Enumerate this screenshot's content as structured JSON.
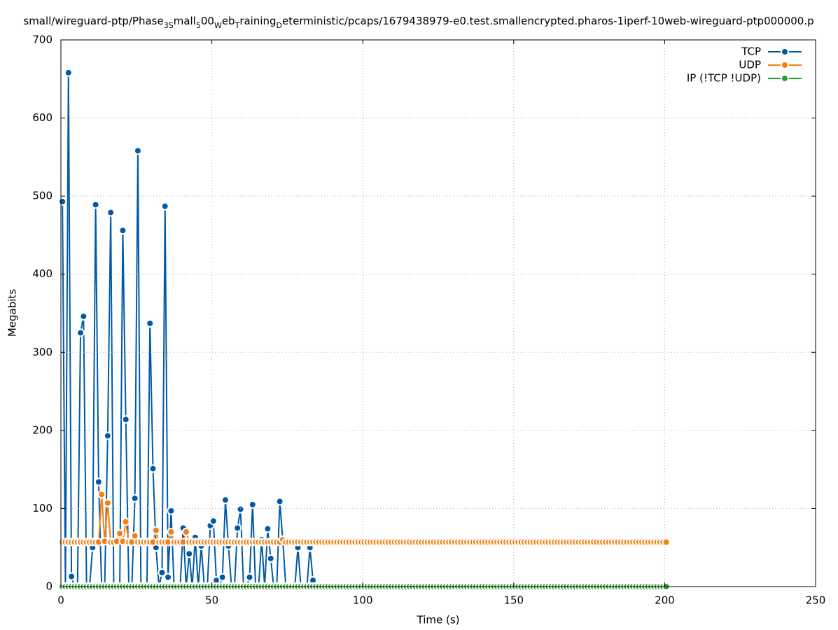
{
  "chart_data": {
    "type": "line",
    "title": [
      {
        "text": "small/wireguard-ptp/Phase",
        "sub": false
      },
      {
        "text": "3S",
        "sub": true
      },
      {
        "text": "mall",
        "sub": false
      },
      {
        "text": "5",
        "sub": true
      },
      {
        "text": "00",
        "sub": false
      },
      {
        "text": "W",
        "sub": true
      },
      {
        "text": "eb",
        "sub": false
      },
      {
        "text": "T",
        "sub": true
      },
      {
        "text": "raining",
        "sub": false
      },
      {
        "text": "D",
        "sub": true
      },
      {
        "text": "eterministic/pcaps/1679438979-e0.test.smallencrypted.pharos-1iperf-10web-wireguard-ptp000000.p",
        "sub": false
      }
    ],
    "xlabel": "Time (s)",
    "ylabel": "Megabits",
    "xlim": [
      0,
      250
    ],
    "xticks": [
      0,
      50,
      100,
      150,
      200,
      250
    ],
    "ylim": [
      0,
      700
    ],
    "yticks": [
      0,
      100,
      200,
      300,
      400,
      500,
      600,
      700
    ],
    "grid": true,
    "legend": "top-right",
    "series": [
      {
        "name": "TCP",
        "color": "#005aa8",
        "x": [
          0.5,
          1.5,
          2.5,
          3.5,
          4.5,
          5.5,
          6.5,
          7.5,
          8.5,
          9.5,
          10.5,
          11.5,
          12.5,
          13.5,
          14.5,
          15.5,
          16.5,
          17.5,
          18.5,
          19.5,
          20.5,
          21.5,
          22.5,
          23.5,
          24.5,
          25.5,
          26.5,
          27.5,
          28.5,
          29.5,
          30.5,
          31.5,
          32.5,
          33.5,
          34.5,
          35.5,
          36.5,
          37.5,
          38.5,
          39.5,
          40.5,
          41.5,
          42.5,
          43.5,
          44.5,
          45.5,
          46.5,
          47.5,
          48.5,
          49.5,
          50.5,
          51.5,
          52.5,
          53.5,
          54.5,
          55.5,
          56.5,
          57.5,
          58.5,
          59.5,
          60.5,
          61.5,
          62.5,
          63.5,
          64.5,
          65.5,
          66.5,
          67.5,
          68.5,
          69.5,
          70.5,
          71.5,
          72.5,
          73.5,
          74.5,
          75.5,
          76.5,
          77.5,
          78.5,
          79.5,
          80.5,
          81.5,
          82.5,
          83.5
        ],
        "values": [
          493,
          0,
          658,
          13,
          0,
          0,
          325,
          346,
          0,
          0,
          50,
          489,
          134,
          0,
          0,
          193,
          479,
          0,
          0,
          0,
          456,
          214,
          0,
          0,
          113,
          558,
          0,
          0,
          0,
          337,
          151,
          50,
          0,
          18,
          487,
          12,
          97,
          0,
          0,
          0,
          75,
          0,
          42,
          0,
          63,
          0,
          52,
          0,
          0,
          78,
          84,
          8,
          0,
          12,
          111,
          52,
          0,
          0,
          75,
          99,
          0,
          0,
          12,
          105,
          0,
          0,
          60,
          0,
          74,
          36,
          0,
          0,
          109,
          60,
          0,
          0,
          0,
          0,
          50,
          0,
          0,
          0,
          50,
          8
        ]
      },
      {
        "name": "UDP",
        "color": "#f47f14",
        "x": [
          0.5,
          1.5,
          2.5,
          3.5,
          4.5,
          5.5,
          6.5,
          7.5,
          8.5,
          9.5,
          10.5,
          11.5,
          12.5,
          13.5,
          14.5,
          15.5,
          16.5,
          17.5,
          18.5,
          19.5,
          20.5,
          21.5,
          22.5,
          23.5,
          24.5,
          25.5,
          26.5,
          27.5,
          28.5,
          29.5,
          30.5,
          31.5,
          32.5,
          33.5,
          34.5,
          35.5,
          36.5,
          37.5,
          38.5,
          39.5,
          40.5,
          41.5,
          42.5,
          43.5,
          44.5,
          45.5,
          46.5,
          47.5,
          48.5,
          49.5,
          50.5,
          51.5,
          52.5,
          53.5,
          54.5,
          55.5,
          56.5,
          57.5,
          58.5,
          59.5,
          60.5,
          61.5,
          62.5,
          63.5,
          64.5,
          65.5,
          66.5,
          67.5,
          68.5,
          69.5,
          70.5,
          71.5,
          72.5,
          73.5,
          74.5,
          75.5,
          76.5,
          77.5,
          78.5,
          79.5,
          80.5,
          81.5,
          82.5,
          83.5,
          84.5,
          85.5,
          86.5,
          87.5,
          88.5,
          89.5,
          90.5,
          91.5,
          92.5,
          93.5,
          94.5,
          95.5,
          96.5,
          97.5,
          98.5,
          99.5,
          100.5,
          101.5,
          102.5,
          103.5,
          104.5,
          105.5,
          106.5,
          107.5,
          108.5,
          109.5,
          110.5,
          111.5,
          112.5,
          113.5,
          114.5,
          115.5,
          116.5,
          117.5,
          118.5,
          119.5,
          120.5,
          121.5,
          122.5,
          123.5,
          124.5,
          125.5,
          126.5,
          127.5,
          128.5,
          129.5,
          130.5,
          131.5,
          132.5,
          133.5,
          134.5,
          135.5,
          136.5,
          137.5,
          138.5,
          139.5,
          140.5,
          141.5,
          142.5,
          143.5,
          144.5,
          145.5,
          146.5,
          147.5,
          148.5,
          149.5,
          150.5,
          151.5,
          152.5,
          153.5,
          154.5,
          155.5,
          156.5,
          157.5,
          158.5,
          159.5,
          160.5,
          161.5,
          162.5,
          163.5,
          164.5,
          165.5,
          166.5,
          167.5,
          168.5,
          169.5,
          170.5,
          171.5,
          172.5,
          173.5,
          174.5,
          175.5,
          176.5,
          177.5,
          178.5,
          179.5,
          180.5,
          181.5,
          182.5,
          183.5,
          184.5,
          185.5,
          186.5,
          187.5,
          188.5,
          189.5,
          190.5,
          191.5,
          192.5,
          193.5,
          194.5,
          195.5,
          196.5,
          197.5,
          198.5,
          199.5,
          200.5
        ],
        "values": [
          57,
          57,
          57,
          57,
          57,
          57,
          57,
          57,
          57,
          57,
          57,
          57,
          57,
          118,
          58,
          107,
          57,
          57,
          58,
          68,
          58,
          83,
          57,
          57,
          65,
          57,
          57,
          57,
          57,
          57,
          57,
          72,
          57,
          57,
          57,
          57,
          70,
          57,
          57,
          57,
          57,
          70,
          57,
          57,
          57,
          57,
          57,
          57,
          57,
          57,
          57,
          57,
          57,
          57,
          57,
          57,
          57,
          57,
          57,
          57,
          57,
          57,
          57,
          57,
          57,
          57,
          57,
          57,
          57,
          57,
          57,
          57,
          57,
          60,
          57,
          57,
          57,
          57,
          57,
          57,
          57,
          57,
          57,
          57,
          57,
          57,
          57,
          57,
          57,
          57,
          57,
          57,
          57,
          57,
          57,
          57,
          57,
          57,
          57,
          57,
          57,
          57,
          57,
          57,
          57,
          57,
          57,
          57,
          57,
          57,
          57,
          57,
          57,
          57,
          57,
          57,
          57,
          57,
          57,
          57,
          57,
          57,
          57,
          57,
          57,
          57,
          57,
          57,
          57,
          57,
          57,
          57,
          57,
          57,
          57,
          57,
          57,
          57,
          57,
          57,
          57,
          57,
          57,
          57,
          57,
          57,
          57,
          57,
          57,
          57,
          57,
          57,
          57,
          57,
          57,
          57,
          57,
          57,
          57,
          57,
          57,
          57,
          57,
          57,
          57,
          57,
          57,
          57,
          57,
          57,
          57,
          57,
          57,
          57,
          57,
          57,
          57,
          57,
          57,
          57,
          57,
          57,
          57,
          57,
          57,
          57,
          57,
          57,
          57,
          57,
          57,
          57,
          57,
          57,
          57,
          57,
          57,
          57,
          57,
          57,
          57
        ]
      },
      {
        "name": "IP (!TCP  !UDP)",
        "color": "#2ca02c",
        "x": [
          0.5,
          1.5,
          2.5,
          3.5,
          4.5,
          5.5,
          6.5,
          7.5,
          8.5,
          9.5,
          10.5,
          11.5,
          12.5,
          13.5,
          14.5,
          15.5,
          16.5,
          17.5,
          18.5,
          19.5,
          20.5,
          21.5,
          22.5,
          23.5,
          24.5,
          25.5,
          26.5,
          27.5,
          28.5,
          29.5,
          30.5,
          31.5,
          32.5,
          33.5,
          34.5,
          35.5,
          36.5,
          37.5,
          38.5,
          39.5,
          40.5,
          41.5,
          42.5,
          43.5,
          44.5,
          45.5,
          46.5,
          47.5,
          48.5,
          49.5,
          50.5,
          51.5,
          52.5,
          53.5,
          54.5,
          55.5,
          56.5,
          57.5,
          58.5,
          59.5,
          60.5,
          61.5,
          62.5,
          63.5,
          64.5,
          65.5,
          66.5,
          67.5,
          68.5,
          69.5,
          70.5,
          71.5,
          72.5,
          73.5,
          74.5,
          75.5,
          76.5,
          77.5,
          78.5,
          79.5,
          80.5,
          81.5,
          82.5,
          83.5,
          84.5,
          85.5,
          86.5,
          87.5,
          88.5,
          89.5,
          90.5,
          91.5,
          92.5,
          93.5,
          94.5,
          95.5,
          96.5,
          97.5,
          98.5,
          99.5,
          100.5,
          101.5,
          102.5,
          103.5,
          104.5,
          105.5,
          106.5,
          107.5,
          108.5,
          109.5,
          110.5,
          111.5,
          112.5,
          113.5,
          114.5,
          115.5,
          116.5,
          117.5,
          118.5,
          119.5,
          120.5,
          121.5,
          122.5,
          123.5,
          124.5,
          125.5,
          126.5,
          127.5,
          128.5,
          129.5,
          130.5,
          131.5,
          132.5,
          133.5,
          134.5,
          135.5,
          136.5,
          137.5,
          138.5,
          139.5,
          140.5,
          141.5,
          142.5,
          143.5,
          144.5,
          145.5,
          146.5,
          147.5,
          148.5,
          149.5,
          150.5,
          151.5,
          152.5,
          153.5,
          154.5,
          155.5,
          156.5,
          157.5,
          158.5,
          159.5,
          160.5,
          161.5,
          162.5,
          163.5,
          164.5,
          165.5,
          166.5,
          167.5,
          168.5,
          169.5,
          170.5,
          171.5,
          172.5,
          173.5,
          174.5,
          175.5,
          176.5,
          177.5,
          178.5,
          179.5,
          180.5,
          181.5,
          182.5,
          183.5,
          184.5,
          185.5,
          186.5,
          187.5,
          188.5,
          189.5,
          190.5,
          191.5,
          192.5,
          193.5,
          194.5,
          195.5,
          196.5,
          197.5,
          198.5,
          199.5,
          200.5
        ],
        "values": [
          0,
          0,
          0,
          0,
          0,
          0,
          0,
          0,
          0,
          0,
          0,
          0,
          0,
          0,
          0,
          0,
          0,
          0,
          0,
          0,
          0,
          0,
          0,
          0,
          0,
          0,
          0,
          0,
          0,
          0,
          0,
          0,
          0,
          0,
          0,
          0,
          0,
          0,
          0,
          0,
          0,
          0,
          0,
          0,
          0,
          0,
          0,
          0,
          0,
          0,
          0,
          0,
          0,
          0,
          0,
          0,
          0,
          0,
          0,
          0,
          0,
          0,
          0,
          0,
          0,
          0,
          0,
          0,
          0,
          0,
          0,
          0,
          0,
          0,
          0,
          0,
          0,
          0,
          0,
          0,
          0,
          0,
          0,
          0,
          0,
          0,
          0,
          0,
          0,
          0,
          0,
          0,
          0,
          0,
          0,
          0,
          0,
          0,
          0,
          0,
          0,
          0,
          0,
          0,
          0,
          0,
          0,
          0,
          0,
          0,
          0,
          0,
          0,
          0,
          0,
          0,
          0,
          0,
          0,
          0,
          0,
          0,
          0,
          0,
          0,
          0,
          0,
          0,
          0,
          0,
          0,
          0,
          0,
          0,
          0,
          0,
          0,
          0,
          0,
          0,
          0,
          0,
          0,
          0,
          0,
          0,
          0,
          0,
          0,
          0,
          0,
          0,
          0,
          0,
          0,
          0,
          0,
          0,
          0,
          0,
          0,
          0,
          0,
          0,
          0,
          0,
          0,
          0,
          0,
          0,
          0,
          0,
          0,
          0,
          0,
          0,
          0,
          0,
          0,
          0,
          0,
          0,
          0,
          0,
          0,
          0,
          0,
          0,
          0,
          0,
          0,
          0,
          0,
          0,
          0,
          0,
          0,
          0,
          0,
          0,
          0
        ]
      }
    ]
  }
}
